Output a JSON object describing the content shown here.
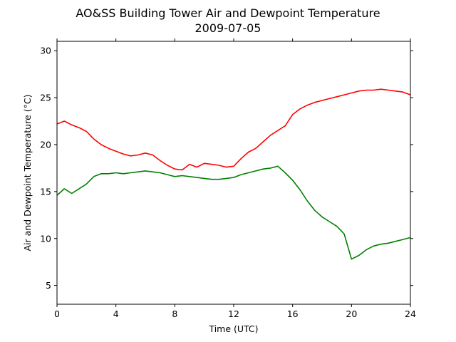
{
  "chart_data": {
    "type": "line",
    "title": "AO&SS Building Tower Air and Dewpoint Temperature",
    "subtitle": "2009-07-05",
    "xlabel": "Time (UTC)",
    "ylabel": "Air and Dewpoint Temperature (°C)",
    "xlim": [
      0,
      24
    ],
    "ylim": [
      3,
      31
    ],
    "xticks": [
      0,
      4,
      8,
      12,
      16,
      20,
      24
    ],
    "yticks": [
      5,
      10,
      15,
      20,
      25,
      30
    ],
    "grid": false,
    "legend": "none",
    "series": [
      {
        "color": "#ff0000",
        "x": [
          0,
          0.5,
          1,
          1.5,
          2,
          2.5,
          3,
          3.5,
          4,
          4.5,
          5,
          5.5,
          6,
          6.5,
          7,
          7.5,
          8,
          8.5,
          9,
          9.5,
          10,
          10.5,
          11,
          11.5,
          12,
          12.5,
          13,
          13.5,
          14,
          14.5,
          15,
          15.5,
          16,
          16.5,
          17,
          17.5,
          18,
          18.5,
          19,
          19.5,
          20,
          20.5,
          21,
          21.5,
          22,
          22.5,
          23,
          23.5,
          24
        ],
        "y": [
          22.2,
          22.5,
          22.1,
          21.8,
          21.4,
          20.6,
          20.0,
          19.6,
          19.3,
          19.0,
          18.8,
          18.9,
          19.1,
          18.9,
          18.3,
          17.8,
          17.4,
          17.3,
          17.9,
          17.6,
          18.0,
          17.9,
          17.8,
          17.6,
          17.7,
          18.5,
          19.2,
          19.6,
          20.3,
          21.0,
          21.5,
          22.0,
          23.2,
          23.8,
          24.2,
          24.5,
          24.7,
          24.9,
          25.1,
          25.3,
          25.5,
          25.7,
          25.8,
          25.8,
          25.9,
          25.8,
          25.7,
          25.6,
          25.3
        ]
      },
      {
        "color": "#008000",
        "x": [
          0,
          0.5,
          1,
          1.5,
          2,
          2.5,
          3,
          3.5,
          4,
          4.5,
          5,
          5.5,
          6,
          6.5,
          7,
          7.5,
          8,
          8.5,
          9,
          9.5,
          10,
          10.5,
          11,
          11.5,
          12,
          12.5,
          13,
          13.5,
          14,
          14.5,
          15,
          15.5,
          16,
          16.5,
          17,
          17.5,
          18,
          18.5,
          19,
          19.5,
          20,
          20.5,
          21,
          21.5,
          22,
          22.5,
          23,
          23.5,
          24
        ],
        "y": [
          14.6,
          15.3,
          14.8,
          15.3,
          15.8,
          16.6,
          16.9,
          16.9,
          17.0,
          16.9,
          17.0,
          17.1,
          17.2,
          17.1,
          17.0,
          16.8,
          16.6,
          16.7,
          16.6,
          16.5,
          16.4,
          16.3,
          16.3,
          16.4,
          16.5,
          16.8,
          17.0,
          17.2,
          17.4,
          17.5,
          17.7,
          17.0,
          16.2,
          15.2,
          14.0,
          13.0,
          12.3,
          11.8,
          11.3,
          10.5,
          7.8,
          8.2,
          8.8,
          9.2,
          9.4,
          9.5,
          9.7,
          9.9,
          10.1
        ]
      }
    ]
  }
}
